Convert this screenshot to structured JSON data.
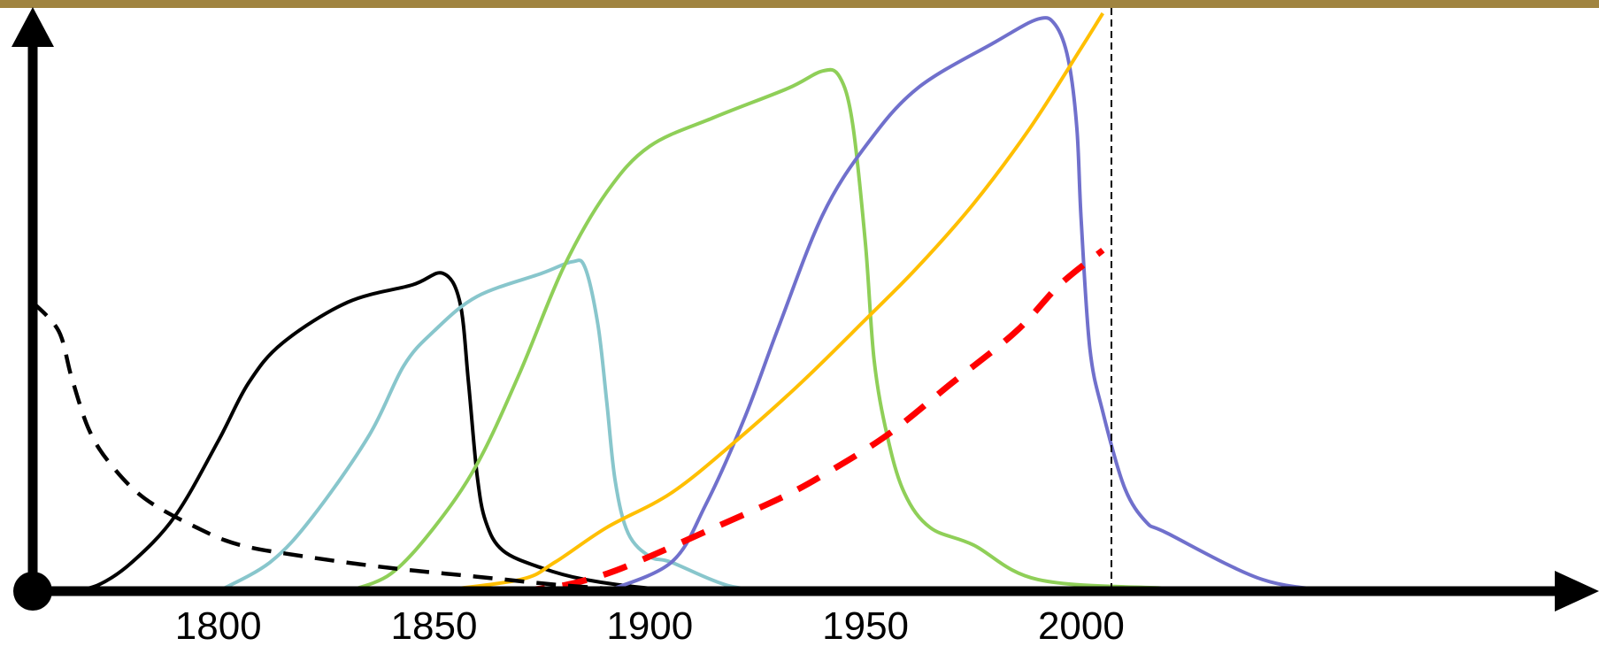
{
  "chart_data": {
    "type": "line",
    "title": "",
    "xlabel": "",
    "ylabel": "",
    "xlim": [
      1757,
      2120
    ],
    "ylim": [
      0,
      100
    ],
    "x_ticks": [
      1800,
      1850,
      1900,
      1950,
      2000
    ],
    "x_tick_labels": [
      "1800",
      "1850",
      "1900",
      "1950",
      "2000"
    ],
    "grid": false,
    "legend": "none",
    "reference_line_x": 2007,
    "colors": {
      "top_band": "#a08440",
      "axis": "#000000",
      "reference_line": "#000000"
    },
    "series": [
      {
        "color": "#000000",
        "style": "solid",
        "x": [
          1765,
          1772,
          1780,
          1790,
          1800,
          1807,
          1815,
          1830,
          1845,
          1852,
          1856,
          1858,
          1860,
          1862,
          1866,
          1875,
          1885,
          1900,
          1915
        ],
        "y": [
          0,
          1,
          5,
          13,
          26,
          36,
          43,
          50,
          53,
          55,
          50,
          36,
          20,
          12,
          7,
          4,
          2,
          0.5,
          0
        ]
      },
      {
        "color": "#88c6cc",
        "style": "solid",
        "x": [
          1800,
          1812,
          1822,
          1835,
          1843,
          1850,
          1860,
          1875,
          1882,
          1885,
          1888,
          1890,
          1892,
          1895,
          1900,
          1905,
          1918,
          1930
        ],
        "y": [
          0,
          5,
          13,
          27,
          39,
          45,
          51,
          55,
          57,
          56,
          46,
          33,
          19,
          10,
          6,
          5,
          1,
          0
        ]
      },
      {
        "color": "#8fcf58",
        "style": "solid",
        "x": [
          1830,
          1840,
          1850,
          1860,
          1870,
          1880,
          1890,
          1900,
          1915,
          1932,
          1940,
          1944,
          1947,
          1950,
          1952,
          1955,
          1959,
          1965,
          1975,
          1990,
          2020,
          2050
        ],
        "y": [
          0,
          3,
          11,
          22,
          38,
          56,
          69,
          77,
          82,
          87,
          90,
          89,
          81,
          60,
          40,
          27,
          17,
          11,
          8,
          2,
          0.5,
          0
        ]
      },
      {
        "color": "#7070cc",
        "style": "solid",
        "x": [
          1890,
          1905,
          1913,
          1922,
          1930,
          1940,
          1950,
          1962,
          1980,
          1990,
          1994,
          1997,
          1999,
          2000,
          2002,
          2005,
          2010,
          2015,
          2020,
          2042,
          2060
        ],
        "y": [
          0,
          5,
          15,
          30,
          46,
          65,
          77,
          87,
          95,
          99,
          98,
          92,
          80,
          64,
          42,
          31,
          18,
          12,
          10,
          2,
          0
        ]
      },
      {
        "color": "#ffbf00",
        "style": "solid",
        "x": [
          1850,
          1870,
          1878,
          1890,
          1905,
          1920,
          1935,
          1950,
          1962,
          1975,
          1988,
          2000,
          2005
        ],
        "y": [
          0,
          2,
          5,
          11,
          17,
          26,
          36,
          47,
          56,
          67,
          80,
          94,
          100
        ]
      },
      {
        "color": "#ff0000",
        "style": "dashed",
        "x": [
          1870,
          1880,
          1890,
          1900,
          1915,
          1930,
          1940,
          1955,
          1970,
          1985,
          1995,
          2005
        ],
        "y": [
          0,
          1,
          3,
          6,
          11,
          16,
          20,
          27,
          36,
          45,
          53,
          59
        ]
      },
      {
        "color": "#000000",
        "style": "dashed",
        "x": [
          1757,
          1763,
          1766,
          1770,
          1775,
          1783,
          1795,
          1805,
          1820,
          1840,
          1860,
          1880,
          1900
        ],
        "y": [
          50,
          45,
          37,
          28,
          22,
          16,
          11,
          8,
          6,
          4,
          2.5,
          1,
          0
        ]
      }
    ]
  }
}
